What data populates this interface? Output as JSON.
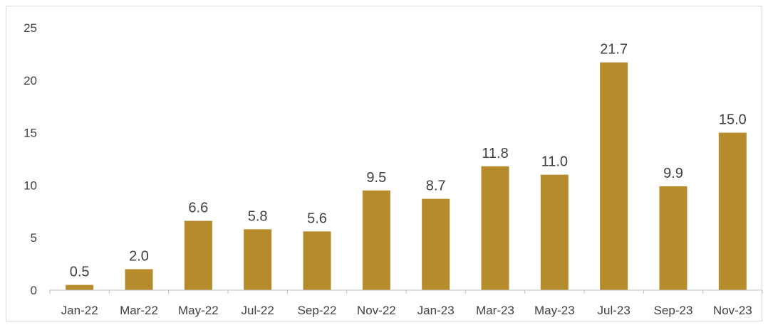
{
  "chart_data": {
    "type": "bar",
    "categories": [
      "Jan-22",
      "Mar-22",
      "May-22",
      "Jul-22",
      "Sep-22",
      "Nov-22",
      "Jan-23",
      "Mar-23",
      "May-23",
      "Jul-23",
      "Sep-23",
      "Nov-23"
    ],
    "values": [
      0.5,
      2.0,
      6.6,
      5.8,
      5.6,
      9.5,
      8.7,
      11.8,
      11.0,
      21.7,
      9.9,
      15.0
    ],
    "data_labels": [
      "0.5",
      "2.0",
      "6.6",
      "5.8",
      "5.6",
      "9.5",
      "8.7",
      "11.8",
      "11.0",
      "21.7",
      "9.9",
      "15.0"
    ],
    "title": "",
    "xlabel": "",
    "ylabel": "",
    "ylim": [
      0,
      25
    ],
    "yticks": [
      0,
      5,
      10,
      15,
      20,
      25
    ],
    "grid": false,
    "legend": "none",
    "colors": {
      "bar": "#b58b2c",
      "axis": "#bfbfbf",
      "text": "#404040"
    }
  }
}
